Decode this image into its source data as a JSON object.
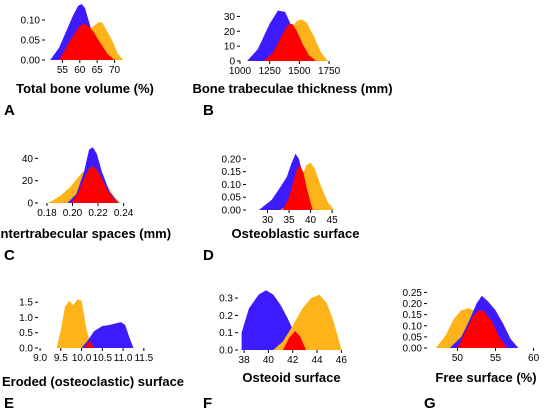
{
  "chart_data": [
    {
      "panel": "A",
      "type": "area",
      "xlabel": "Total bone volume (%)",
      "xticks": [
        55,
        60,
        65,
        70
      ],
      "yticks": [
        0.0,
        0.05,
        0.1
      ],
      "ytick_labels": [
        "0.00",
        "0.05",
        "0.10"
      ],
      "xlim": [
        50,
        73
      ],
      "ylim": [
        0,
        0.14
      ],
      "colors": {
        "blue": "#3c1cff",
        "orange": "#ffb31a",
        "red": "#ff0000"
      },
      "series": [
        {
          "color": "blue",
          "x": [
            51.5,
            54,
            56,
            58,
            59.5,
            60.5,
            61.5,
            62.5,
            63.5,
            64.5,
            66,
            68
          ],
          "y": [
            0,
            0.03,
            0.07,
            0.11,
            0.135,
            0.14,
            0.13,
            0.1,
            0.07,
            0.04,
            0.015,
            0
          ]
        },
        {
          "color": "orange",
          "x": [
            55,
            58,
            60,
            62,
            64,
            65.5,
            66.5,
            68,
            69.5,
            71,
            72.5
          ],
          "y": [
            0,
            0.02,
            0.05,
            0.075,
            0.085,
            0.095,
            0.093,
            0.07,
            0.045,
            0.015,
            0
          ]
        },
        {
          "color": "red",
          "x": [
            54,
            56,
            58,
            60,
            61,
            62,
            63,
            64,
            65,
            66.5,
            68,
            70
          ],
          "y": [
            0,
            0.03,
            0.06,
            0.085,
            0.09,
            0.088,
            0.08,
            0.07,
            0.055,
            0.035,
            0.015,
            0
          ]
        }
      ]
    },
    {
      "panel": "B",
      "type": "area",
      "xlabel": "Bone trabeculae thickness (mm)",
      "xticks": [
        1000,
        1250,
        1500,
        1750
      ],
      "yticks": [
        0,
        10,
        20,
        30
      ],
      "ytick_labels": [
        "0",
        "10",
        "20",
        "30"
      ],
      "xlim": [
        1000,
        1800
      ],
      "ylim": [
        0,
        37
      ],
      "colors": {
        "blue": "#3c1cff",
        "orange": "#ffb31a",
        "red": "#ff0000"
      },
      "series": [
        {
          "color": "blue",
          "x": [
            1060,
            1150,
            1250,
            1320,
            1380,
            1430,
            1490,
            1550,
            1600
          ],
          "y": [
            0,
            8,
            25,
            34,
            33,
            24,
            12,
            4,
            0
          ]
        },
        {
          "color": "orange",
          "x": [
            1220,
            1300,
            1380,
            1430,
            1480,
            1520,
            1560,
            1620,
            1680,
            1740
          ],
          "y": [
            0,
            5,
            16,
            22,
            27,
            28,
            26,
            17,
            6,
            0
          ]
        },
        {
          "color": "red",
          "x": [
            1200,
            1280,
            1350,
            1400,
            1440,
            1480,
            1530,
            1580,
            1640
          ],
          "y": [
            0,
            6,
            17,
            24,
            25,
            20,
            11,
            4,
            0
          ]
        }
      ]
    },
    {
      "panel": "C",
      "type": "area",
      "xlabel": "Intertrabecular spaces (mm)",
      "xticks": [
        0.18,
        0.2,
        0.22,
        0.24
      ],
      "yticks": [
        0,
        20,
        40
      ],
      "ytick_labels": [
        "0",
        "20",
        "40"
      ],
      "xlim": [
        0.173,
        0.245
      ],
      "ylim": [
        0,
        52
      ],
      "colors": {
        "blue": "#3c1cff",
        "orange": "#ffb31a",
        "red": "#ff0000"
      },
      "series": [
        {
          "color": "orange",
          "x": [
            0.181,
            0.19,
            0.198,
            0.205,
            0.211,
            0.216,
            0.221,
            0.227,
            0.233,
            0.238
          ],
          "y": [
            0,
            6,
            14,
            24,
            31,
            33,
            28,
            16,
            5,
            0
          ]
        },
        {
          "color": "blue",
          "x": [
            0.196,
            0.203,
            0.209,
            0.213,
            0.216,
            0.219,
            0.223,
            0.229,
            0.236
          ],
          "y": [
            0,
            8,
            28,
            48,
            50,
            44,
            28,
            10,
            0
          ]
        },
        {
          "color": "red",
          "x": [
            0.199,
            0.204,
            0.209,
            0.213,
            0.216,
            0.219,
            0.223,
            0.228,
            0.235
          ],
          "y": [
            0,
            8,
            22,
            31,
            33,
            30,
            22,
            10,
            0
          ]
        }
      ]
    },
    {
      "panel": "D",
      "type": "area",
      "xlabel": "Osteoblastic surface",
      "xticks": [
        30,
        35,
        40,
        45
      ],
      "yticks": [
        0.0,
        0.05,
        0.1,
        0.15,
        0.2
      ],
      "ytick_labels": [
        "0.00",
        "0.05",
        "0.10",
        "0.15",
        "0.20"
      ],
      "xlim": [
        25,
        48
      ],
      "ylim": [
        0,
        0.235
      ],
      "colors": {
        "blue": "#3c1cff",
        "orange": "#ffb31a",
        "red": "#ff0000"
      },
      "series": [
        {
          "color": "blue",
          "x": [
            28,
            31,
            33,
            34.5,
            35.5,
            36.5,
            37.3,
            38.5,
            40,
            42
          ],
          "y": [
            0,
            0.04,
            0.09,
            0.13,
            0.18,
            0.22,
            0.2,
            0.12,
            0.04,
            0
          ]
        },
        {
          "color": "orange",
          "x": [
            33,
            35.5,
            37,
            38,
            39,
            40,
            41,
            42.5,
            44,
            45.5
          ],
          "y": [
            0,
            0.03,
            0.08,
            0.13,
            0.175,
            0.185,
            0.16,
            0.09,
            0.03,
            0
          ]
        },
        {
          "color": "red",
          "x": [
            33.5,
            35,
            36,
            36.8,
            37.5,
            38.3,
            39.2,
            40.5
          ],
          "y": [
            0,
            0.05,
            0.11,
            0.16,
            0.175,
            0.15,
            0.08,
            0
          ]
        }
      ]
    },
    {
      "panel": "E",
      "type": "area",
      "xlabel": "Eroded (osteoclastic) surface",
      "xticks": [
        9.0,
        9.5,
        10.0,
        10.5,
        11.0,
        11.5
      ],
      "yticks": [
        0.0,
        0.5,
        1.0,
        1.5
      ],
      "ytick_labels": [
        "0.0",
        "0.5",
        "1.0",
        "1.5"
      ],
      "xlim": [
        8.95,
        11.6
      ],
      "ylim": [
        0,
        1.9
      ],
      "colors": {
        "blue": "#3c1cff",
        "orange": "#ffb31a",
        "red": "#ff0000"
      },
      "series": [
        {
          "color": "orange",
          "x": [
            9.4,
            9.5,
            9.6,
            9.7,
            9.8,
            9.9,
            10.0,
            10.05,
            10.12,
            10.2,
            10.3
          ],
          "y": [
            0,
            0.6,
            1.35,
            1.55,
            1.4,
            1.6,
            1.55,
            1.15,
            0.6,
            0.2,
            0
          ]
        },
        {
          "color": "blue",
          "x": [
            10.0,
            10.15,
            10.3,
            10.5,
            10.65,
            10.8,
            10.95,
            11.05,
            11.15,
            11.25
          ],
          "y": [
            0,
            0.25,
            0.55,
            0.72,
            0.75,
            0.8,
            0.85,
            0.75,
            0.35,
            0
          ]
        },
        {
          "color": "red",
          "x": [
            10.08,
            10.15,
            10.22,
            10.3
          ],
          "y": [
            0,
            0.18,
            0.2,
            0
          ]
        }
      ]
    },
    {
      "panel": "F",
      "type": "area",
      "xlabel": "Osteoid surface",
      "xticks": [
        38,
        40,
        42,
        44,
        46
      ],
      "yticks": [
        0.0,
        0.1,
        0.2,
        0.3
      ],
      "ytick_labels": [
        "0.0",
        "0.1",
        "0.2",
        "0.3"
      ],
      "xlim": [
        37.5,
        46.3
      ],
      "ylim": [
        0,
        0.37
      ],
      "colors": {
        "blue": "#3c1cff",
        "orange": "#ffb31a",
        "red": "#ff0000"
      },
      "series": [
        {
          "color": "blue",
          "x": [
            37.8,
            38.4,
            39.2,
            39.8,
            40.4,
            41.0,
            41.6,
            42.2,
            42.8,
            43.4
          ],
          "y": [
            0.1,
            0.24,
            0.32,
            0.345,
            0.32,
            0.26,
            0.18,
            0.09,
            0.03,
            0
          ]
        },
        {
          "color": "orange",
          "x": [
            40.4,
            41.2,
            42.0,
            42.8,
            43.5,
            44.2,
            44.8,
            45.3,
            45.7,
            46.0
          ],
          "y": [
            0,
            0.05,
            0.14,
            0.24,
            0.3,
            0.32,
            0.27,
            0.18,
            0.08,
            0
          ]
        },
        {
          "color": "red",
          "x": [
            41.2,
            41.7,
            42.2,
            42.6,
            43.1
          ],
          "y": [
            0,
            0.07,
            0.11,
            0.08,
            0
          ]
        }
      ]
    },
    {
      "panel": "G",
      "type": "area",
      "xlabel": "Free surface (%)",
      "xticks": [
        50,
        55,
        60
      ],
      "yticks": [
        0.0,
        0.05,
        0.1,
        0.15,
        0.2,
        0.25
      ],
      "ytick_labels": [
        "0.00",
        "0.05",
        "0.10",
        "0.15",
        "0.20",
        "0.25"
      ],
      "xlim": [
        46,
        61.5
      ],
      "ylim": [
        0,
        0.27
      ],
      "colors": {
        "blue": "#3c1cff",
        "orange": "#ffb31a",
        "red": "#ff0000"
      },
      "series": [
        {
          "color": "orange",
          "x": [
            47.2,
            48.5,
            49.5,
            50.5,
            51.5,
            52.5,
            53.5,
            54.5,
            55.5,
            57
          ],
          "y": [
            0,
            0.06,
            0.13,
            0.17,
            0.18,
            0.16,
            0.12,
            0.07,
            0.02,
            0
          ]
        },
        {
          "color": "blue",
          "x": [
            49,
            50.5,
            51.5,
            52.5,
            53.2,
            54,
            55,
            56,
            57,
            58
          ],
          "y": [
            0,
            0.05,
            0.12,
            0.2,
            0.235,
            0.21,
            0.17,
            0.11,
            0.04,
            0
          ]
        },
        {
          "color": "red",
          "x": [
            50,
            51,
            52,
            52.8,
            53.5,
            54.5,
            55.5,
            56.5
          ],
          "y": [
            0,
            0.07,
            0.14,
            0.17,
            0.165,
            0.12,
            0.05,
            0
          ]
        }
      ]
    }
  ]
}
